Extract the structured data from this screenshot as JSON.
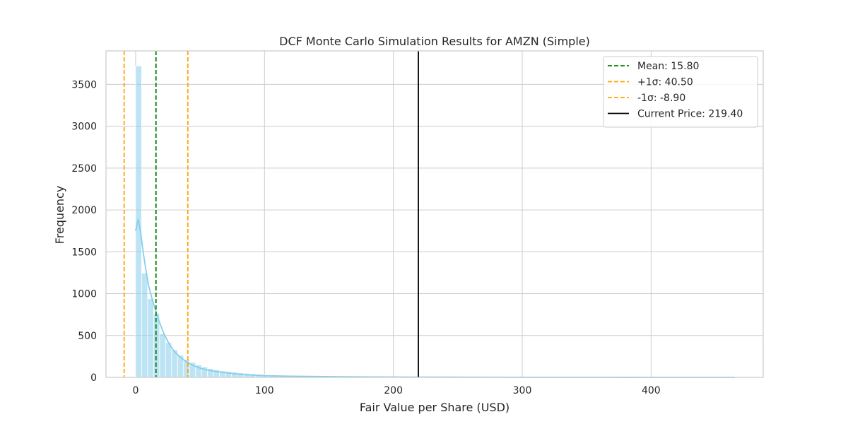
{
  "chart_data": {
    "type": "histogram",
    "title": "DCF Monte Carlo Simulation Results for AMZN (Simple)",
    "xlabel": "Fair Value per Share (USD)",
    "ylabel": "Frequency",
    "xlim": [
      -23,
      487
    ],
    "ylim": [
      0,
      3900
    ],
    "xticks": [
      0,
      100,
      200,
      300,
      400
    ],
    "yticks": [
      0,
      500,
      1000,
      1500,
      2000,
      2500,
      3000,
      3500
    ],
    "grid": true,
    "bar_color": "#87ceeb",
    "bins": {
      "start": 0,
      "width": 4.65,
      "counts": [
        3720,
        1245,
        940,
        760,
        520,
        415,
        330,
        265,
        215,
        178,
        150,
        125,
        105,
        90,
        78,
        70,
        62,
        55,
        48,
        42,
        37,
        33,
        29,
        26,
        23,
        21,
        19,
        17,
        16,
        15,
        14,
        13,
        12,
        11,
        10,
        9,
        9,
        8,
        8,
        7,
        7,
        6,
        6,
        5,
        5,
        5,
        4,
        4,
        4,
        3,
        3,
        3,
        3,
        2,
        2,
        2,
        2,
        2,
        2,
        2,
        1,
        1,
        1,
        1,
        1,
        1,
        1,
        1,
        1,
        1,
        1,
        1,
        1,
        1,
        1,
        1,
        1,
        1,
        1,
        1,
        1,
        1,
        1,
        1,
        1,
        1,
        1,
        1,
        1,
        1,
        1,
        1,
        1,
        1,
        1,
        1,
        1,
        1,
        1,
        1
      ]
    },
    "kde": {
      "color": "#87ceeb",
      "x": [
        0,
        2,
        4,
        6,
        8,
        10,
        12,
        15,
        18,
        22,
        26,
        30,
        35,
        40,
        45,
        50,
        55,
        60,
        70,
        80,
        90,
        100,
        120,
        140,
        160,
        180,
        200,
        230,
        260,
        300,
        350,
        400,
        450,
        465
      ],
      "y": [
        1750,
        1890,
        1720,
        1480,
        1280,
        1100,
        980,
        820,
        680,
        520,
        400,
        310,
        235,
        180,
        140,
        110,
        90,
        75,
        55,
        38,
        28,
        20,
        14,
        10,
        7,
        5,
        4,
        3,
        2,
        1,
        1,
        0,
        0,
        0
      ]
    },
    "reference_lines": [
      {
        "label": "Mean: 15.80",
        "value": 15.8,
        "color": "#008000",
        "style": "dashed"
      },
      {
        "label": "+1σ: 40.50",
        "value": 40.5,
        "color": "#ffa500",
        "style": "dashed"
      },
      {
        "label": "-1σ: -8.90",
        "value": -8.9,
        "color": "#ffa500",
        "style": "dashed"
      },
      {
        "label": "Current Price: 219.40",
        "value": 219.4,
        "color": "#000000",
        "style": "solid"
      }
    ],
    "legend_position": "top-right"
  }
}
